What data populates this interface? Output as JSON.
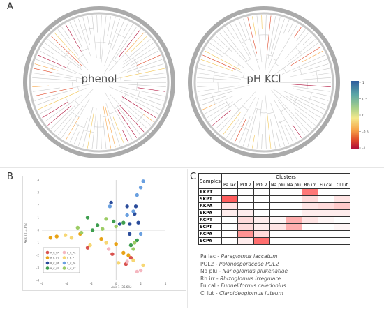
{
  "panels": {
    "a": "A",
    "b": "B",
    "c": "C"
  },
  "trees": [
    {
      "label": "phenol"
    },
    {
      "label": "pH KCl"
    }
  ],
  "colorbar": {
    "ticks": [
      "1",
      "0.5",
      "0",
      "-0.5",
      "-1"
    ],
    "colors": [
      "#2f5d9e",
      "#5aa6a6",
      "#a8d08a",
      "#f3e88a",
      "#f7a64a",
      "#e04a2a",
      "#b0103a"
    ]
  },
  "pca": {
    "xlabel": "Axis 1 (36.6%)",
    "ylabel": "Axis 2 (13.6%)",
    "xticks": [
      "-6",
      "-4",
      "-2",
      "0",
      "2",
      "4"
    ],
    "yticks": [
      "4",
      "3",
      "2",
      "1",
      "0",
      "-1",
      "-2",
      "-3",
      "-4"
    ],
    "legend": [
      {
        "label": "R_K_PA",
        "color": "#d9534f"
      },
      {
        "label": "S_K_PA",
        "color": "#f5b7c0"
      },
      {
        "label": "R_K_PT",
        "color": "#e8a317"
      },
      {
        "label": "S_K_PT",
        "color": "#f7d774"
      },
      {
        "label": "R_C_PA",
        "color": "#2b4c9b"
      },
      {
        "label": "S_C_PA",
        "color": "#6aa0e0"
      },
      {
        "label": "R_C_PT",
        "color": "#3e9e4f"
      },
      {
        "label": "S_C_PT",
        "color": "#9ccc65"
      }
    ]
  },
  "chart_data": {
    "type": "scatter",
    "xlabel": "Axis 1 (36.6%)",
    "ylabel": "Axis 2 (13.6%)",
    "xlim": [
      -6,
      4
    ],
    "ylim": [
      -4,
      4
    ],
    "series": [
      {
        "name": "R_K_PA",
        "color": "#d9534f",
        "points": [
          [
            -3.5,
            -1.6
          ],
          [
            -2.3,
            -1.4
          ],
          [
            -0.3,
            -1.9
          ],
          [
            1.2,
            -2.2
          ],
          [
            0.8,
            -2.7
          ]
        ]
      },
      {
        "name": "S_K_PA",
        "color": "#f5b7c0",
        "points": [
          [
            -3.2,
            -1.8
          ],
          [
            -0.6,
            -1.5
          ],
          [
            0.9,
            -2.5
          ],
          [
            1.7,
            -3.3
          ],
          [
            2.0,
            -3.2
          ]
        ]
      },
      {
        "name": "R_K_PT",
        "color": "#e8a317",
        "points": [
          [
            -5.3,
            -0.6
          ],
          [
            -4.8,
            -0.5
          ],
          [
            -2.9,
            -0.3
          ],
          [
            -1.2,
            -0.7
          ],
          [
            0.0,
            -1.1
          ],
          [
            0.6,
            -1.8
          ],
          [
            1.0,
            -2.0
          ]
        ]
      },
      {
        "name": "S_K_PT",
        "color": "#f7d774",
        "points": [
          [
            -4.1,
            -0.4
          ],
          [
            -3.6,
            -0.6
          ],
          [
            -2.1,
            -1.2
          ],
          [
            -0.8,
            -1.0
          ],
          [
            0.2,
            -2.6
          ],
          [
            1.4,
            -2.4
          ],
          [
            2.2,
            -2.8
          ]
        ]
      },
      {
        "name": "R_C_PA",
        "color": "#2b4c9b",
        "points": [
          [
            -0.4,
            2.2
          ],
          [
            0.9,
            1.9
          ],
          [
            1.6,
            1.9
          ],
          [
            1.5,
            1.3
          ],
          [
            0.3,
            0.5
          ],
          [
            1.1,
            0.5
          ],
          [
            1.8,
            0.6
          ],
          [
            1.1,
            -0.3
          ]
        ]
      },
      {
        "name": "S_C_PA",
        "color": "#6aa0e0",
        "points": [
          [
            2.2,
            3.9
          ],
          [
            2.0,
            3.4
          ],
          [
            1.7,
            2.8
          ],
          [
            -0.5,
            1.9
          ],
          [
            1.4,
            1.5
          ],
          [
            0.9,
            1.2
          ],
          [
            2.0,
            -0.3
          ]
        ]
      },
      {
        "name": "R_C_PT",
        "color": "#3e9e4f",
        "points": [
          [
            -2.3,
            1.0
          ],
          [
            -1.5,
            0.4
          ],
          [
            -1.9,
            0.0
          ],
          [
            -0.2,
            0.7
          ],
          [
            0.6,
            0.6
          ],
          [
            1.7,
            -0.8
          ],
          [
            1.2,
            -1.2
          ]
        ]
      },
      {
        "name": "S_C_PT",
        "color": "#9ccc65",
        "points": [
          [
            -3.1,
            0.2
          ],
          [
            -2.8,
            -0.2
          ],
          [
            -1.1,
            0.1
          ],
          [
            -0.8,
            0.9
          ],
          [
            0.0,
            0.3
          ],
          [
            1.5,
            -1.0
          ],
          [
            1.4,
            -1.5
          ]
        ]
      }
    ]
  },
  "heatmap": {
    "samples_header": "Samples",
    "clusters_header": "Clusters",
    "columns": [
      "Pa lac",
      "POL2",
      "POL2",
      "Na plu",
      "Na plu",
      "Rh irr",
      "Fu cal",
      "Cl lut"
    ],
    "rows": [
      {
        "name": "RKPT",
        "values": [
          0,
          0,
          0,
          0,
          0,
          0.75,
          0,
          0
        ]
      },
      {
        "name": "SKPT",
        "values": [
          0.9,
          0,
          0,
          0,
          0,
          0.2,
          0,
          0.15
        ]
      },
      {
        "name": "RKPA",
        "values": [
          0.15,
          0,
          0,
          0,
          0,
          0.15,
          0.2,
          0.3
        ]
      },
      {
        "name": "SKPA",
        "values": [
          0.1,
          0.1,
          0,
          0,
          0,
          0.1,
          0.1,
          0.1
        ]
      },
      {
        "name": "RCPT",
        "values": [
          0,
          0.2,
          0.1,
          0.05,
          0.45,
          0.15,
          0.05,
          0
        ]
      },
      {
        "name": "SCPT",
        "values": [
          0,
          0.2,
          0.1,
          0.15,
          0.45,
          0,
          0,
          0.05
        ]
      },
      {
        "name": "RCPA",
        "values": [
          0,
          0.6,
          0.2,
          0,
          0,
          0,
          0,
          0
        ]
      },
      {
        "name": "SCPA",
        "values": [
          0,
          0.1,
          0.8,
          0,
          0,
          0,
          0,
          0
        ]
      }
    ]
  },
  "abbreviations": [
    {
      "abbr": "Pa lac",
      "name": "Paraglomus laccatum"
    },
    {
      "abbr": "POL2",
      "name": "Polonosporaceae POL2"
    },
    {
      "abbr": "Na plu",
      "name": "Nanoglomus plukenatiae"
    },
    {
      "abbr": "Rh irr",
      "name": "Rhizoglomus irregulare"
    },
    {
      "abbr": "Fu cal",
      "name": "Funneliformis caledonius"
    },
    {
      "abbr": "Cl lut",
      "name": "Claroideoglomus luteum"
    }
  ]
}
